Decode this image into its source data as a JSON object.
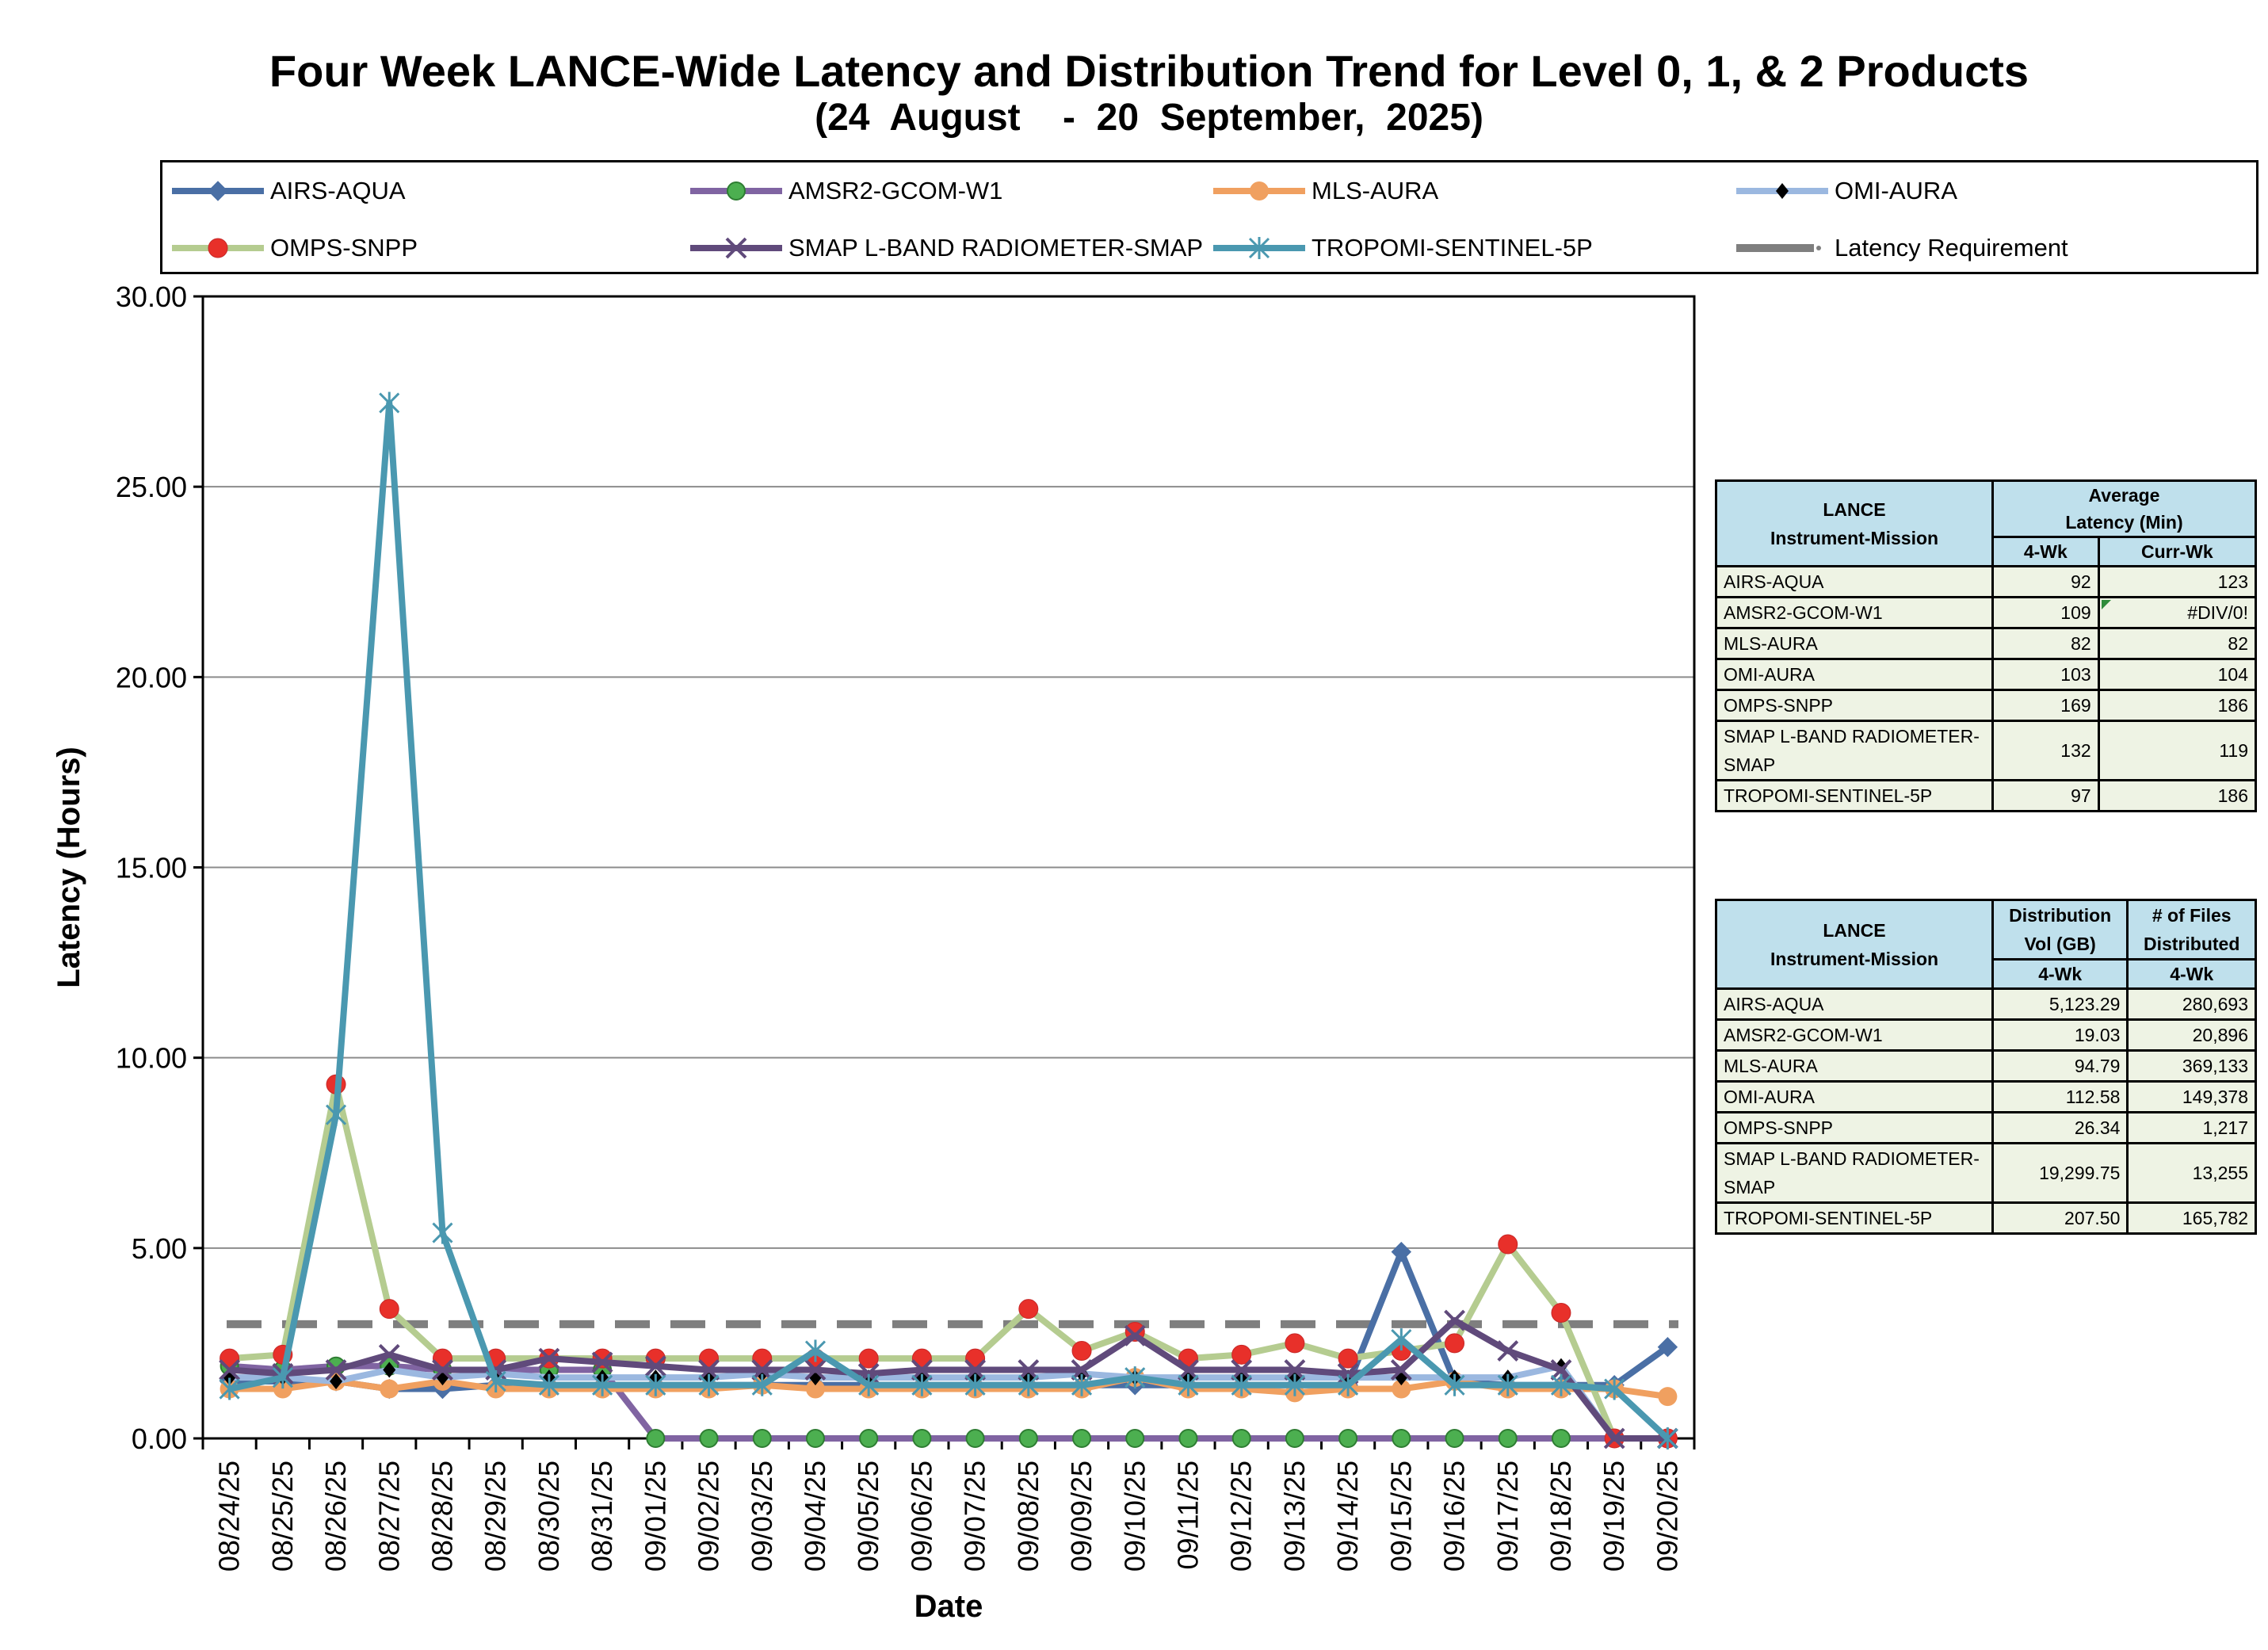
{
  "chart_data": {
    "type": "line",
    "title": "Four Week LANCE-Wide Latency and Distribution Trend for Level 0, 1, & 2 Products",
    "subtitle": "(24  August    -  20  September,  2025)",
    "xlabel": "Date",
    "ylabel": "Latency (Hours)",
    "ylim": [
      0,
      30
    ],
    "yticks": [
      "0.00",
      "5.00",
      "10.00",
      "15.00",
      "20.00",
      "25.00",
      "30.00"
    ],
    "grid": true,
    "legend_position": "top",
    "categories": [
      "08/24/25",
      "08/25/25",
      "08/26/25",
      "08/27/25",
      "08/28/25",
      "08/29/25",
      "08/30/25",
      "08/31/25",
      "09/01/25",
      "09/02/25",
      "09/03/25",
      "09/04/25",
      "09/05/25",
      "09/06/25",
      "09/07/25",
      "09/08/25",
      "09/09/25",
      "09/10/25",
      "09/11/25",
      "09/12/25",
      "09/13/25",
      "09/14/25",
      "09/15/25",
      "09/16/25",
      "09/17/25",
      "09/18/25",
      "09/19/25",
      "09/20/25"
    ],
    "series": [
      {
        "name": "AIRS-AQUA",
        "color": "#4a6fa5",
        "marker": "diamond",
        "values": [
          1.5,
          1.5,
          1.5,
          1.3,
          1.3,
          1.4,
          1.4,
          1.4,
          1.4,
          1.4,
          1.4,
          1.4,
          1.4,
          1.4,
          1.4,
          1.4,
          1.4,
          1.4,
          1.4,
          1.4,
          1.4,
          1.4,
          4.9,
          1.5,
          1.4,
          1.4,
          1.4,
          2.4
        ]
      },
      {
        "name": "AMSR2-GCOM-W1",
        "color": "#8064a2",
        "marker": "circle-green",
        "values": [
          1.9,
          1.8,
          1.9,
          1.9,
          1.8,
          1.8,
          1.8,
          1.8,
          0.0,
          0.0,
          0.0,
          0.0,
          0.0,
          0.0,
          0.0,
          0.0,
          0.0,
          0.0,
          0.0,
          0.0,
          0.0,
          0.0,
          0.0,
          0.0,
          0.0,
          0.0,
          0.0,
          0.0
        ]
      },
      {
        "name": "MLS-AURA",
        "color": "#f0a060",
        "marker": "circle",
        "values": [
          1.3,
          1.3,
          1.5,
          1.3,
          1.5,
          1.3,
          1.3,
          1.3,
          1.3,
          1.3,
          1.4,
          1.3,
          1.3,
          1.3,
          1.3,
          1.3,
          1.3,
          1.6,
          1.3,
          1.3,
          1.2,
          1.3,
          1.3,
          1.5,
          1.3,
          1.3,
          1.3,
          1.1
        ]
      },
      {
        "name": "OMI-AURA",
        "color": "#9bb8e0",
        "marker": "diamond-black",
        "values": [
          1.6,
          1.6,
          1.5,
          1.8,
          1.6,
          1.7,
          1.6,
          1.6,
          1.6,
          1.6,
          1.7,
          1.6,
          1.6,
          1.6,
          1.6,
          1.6,
          1.7,
          1.6,
          1.6,
          1.6,
          1.6,
          1.6,
          1.6,
          1.6,
          1.6,
          1.9,
          0.0,
          0.0
        ]
      },
      {
        "name": "OMPS-SNPP",
        "color": "#b5cc90",
        "marker": "circle-red",
        "values": [
          2.1,
          2.2,
          9.3,
          3.4,
          2.1,
          2.1,
          2.1,
          2.1,
          2.1,
          2.1,
          2.1,
          2.1,
          2.1,
          2.1,
          2.1,
          3.4,
          2.3,
          2.8,
          2.1,
          2.2,
          2.5,
          2.1,
          2.3,
          2.5,
          5.1,
          3.3,
          0.0,
          0.0
        ]
      },
      {
        "name": "SMAP L-BAND RADIOMETER-SMAP",
        "color": "#604a7b",
        "marker": "x",
        "values": [
          1.8,
          1.7,
          1.8,
          2.2,
          1.8,
          1.8,
          2.1,
          2.0,
          1.9,
          1.8,
          1.8,
          1.8,
          1.7,
          1.8,
          1.8,
          1.8,
          1.8,
          2.7,
          1.8,
          1.8,
          1.8,
          1.7,
          1.8,
          3.1,
          2.3,
          1.8,
          0.0,
          0.0
        ]
      },
      {
        "name": "TROPOMI-SENTINEL-5P",
        "color": "#4a98b0",
        "marker": "star",
        "values": [
          1.3,
          1.6,
          8.5,
          27.2,
          5.4,
          1.5,
          1.4,
          1.4,
          1.4,
          1.4,
          1.4,
          2.3,
          1.4,
          1.4,
          1.4,
          1.4,
          1.4,
          1.6,
          1.4,
          1.4,
          1.4,
          1.4,
          2.6,
          1.4,
          1.4,
          1.4,
          1.3,
          0.0
        ]
      }
    ],
    "requirement": {
      "name": "Latency Requirement",
      "value": 3.0,
      "color": "#7f7f7f"
    }
  },
  "latency_table": {
    "header_name": "LANCE\nInstrument-Mission",
    "header_name_l1": "LANCE",
    "header_name_l2": "Instrument-Mission",
    "header_avg_l1": "Average",
    "header_avg_l2": "Latency (Min)",
    "col_4wk": "4-Wk",
    "col_curr": "Curr-Wk",
    "rows": [
      {
        "name": "AIRS-AQUA",
        "wk4": "92",
        "curr": "123"
      },
      {
        "name": "AMSR2-GCOM-W1",
        "wk4": "109",
        "curr": "#DIV/0!"
      },
      {
        "name": "MLS-AURA",
        "wk4": "82",
        "curr": "82"
      },
      {
        "name": "OMI-AURA",
        "wk4": "103",
        "curr": "104"
      },
      {
        "name": "OMPS-SNPP",
        "wk4": "169",
        "curr": "186"
      },
      {
        "name": "SMAP L-BAND RADIOMETER-SMAP",
        "wk4": "132",
        "curr": "119"
      },
      {
        "name": "TROPOMI-SENTINEL-5P",
        "wk4": "97",
        "curr": "186"
      }
    ]
  },
  "distribution_table": {
    "header_name_l1": "LANCE",
    "header_name_l2": "Instrument-Mission",
    "header_vol_l1": "Distribution",
    "header_vol_l2": "Vol (GB)",
    "header_files_l1": "# of Files",
    "header_files_l2": "Distributed",
    "col_vol": "4-Wk",
    "col_files": "4-Wk",
    "rows": [
      {
        "name": "AIRS-AQUA",
        "vol": "5,123.29",
        "files": "280,693"
      },
      {
        "name": "AMSR2-GCOM-W1",
        "vol": "19.03",
        "files": "20,896"
      },
      {
        "name": "MLS-AURA",
        "vol": "94.79",
        "files": "369,133"
      },
      {
        "name": "OMI-AURA",
        "vol": "112.58",
        "files": "149,378"
      },
      {
        "name": "OMPS-SNPP",
        "vol": "26.34",
        "files": "1,217"
      },
      {
        "name": "SMAP L-BAND RADIOMETER-SMAP",
        "vol": "19,299.75",
        "files": "13,255"
      },
      {
        "name": "TROPOMI-SENTINEL-5P",
        "vol": "207.50",
        "files": "165,782"
      }
    ]
  }
}
